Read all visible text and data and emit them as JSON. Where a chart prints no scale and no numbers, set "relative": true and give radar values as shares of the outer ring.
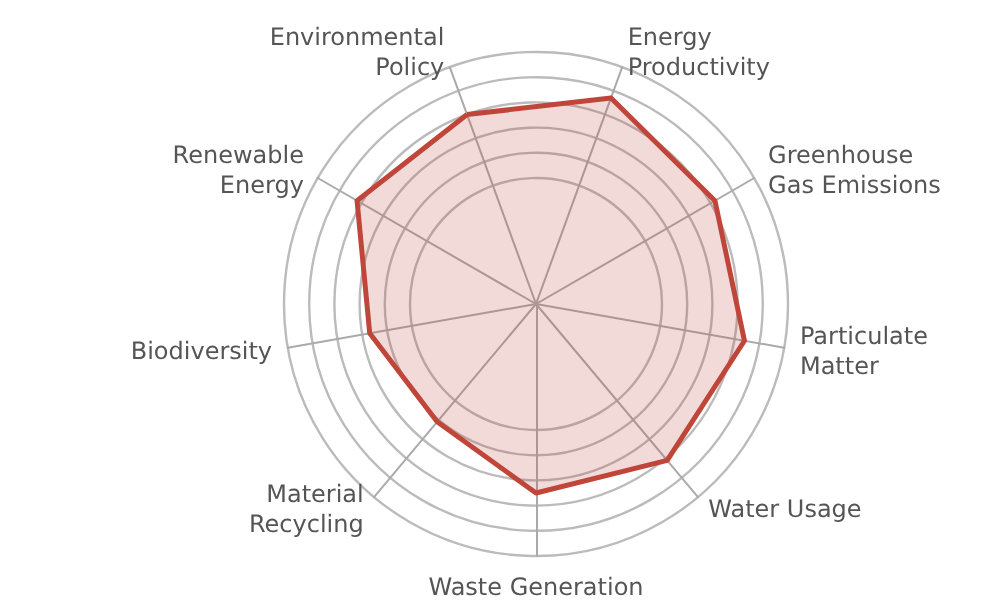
{
  "chart_data": {
    "type": "radar",
    "relative": true,
    "categories": [
      "Environmental Policy",
      "Energy Productivity",
      "Greenhouse Gas Emissions",
      "Particulate Matter",
      "Water Usage",
      "Waste Generation",
      "Material Recycling",
      "Biodiversity",
      "Renewable Energy"
    ],
    "series": [
      {
        "color": "#c0463a",
        "values": [
          0.8,
          0.87,
          0.82,
          0.84,
          0.81,
          0.75,
          0.61,
          0.67,
          0.82
        ]
      }
    ]
  }
}
